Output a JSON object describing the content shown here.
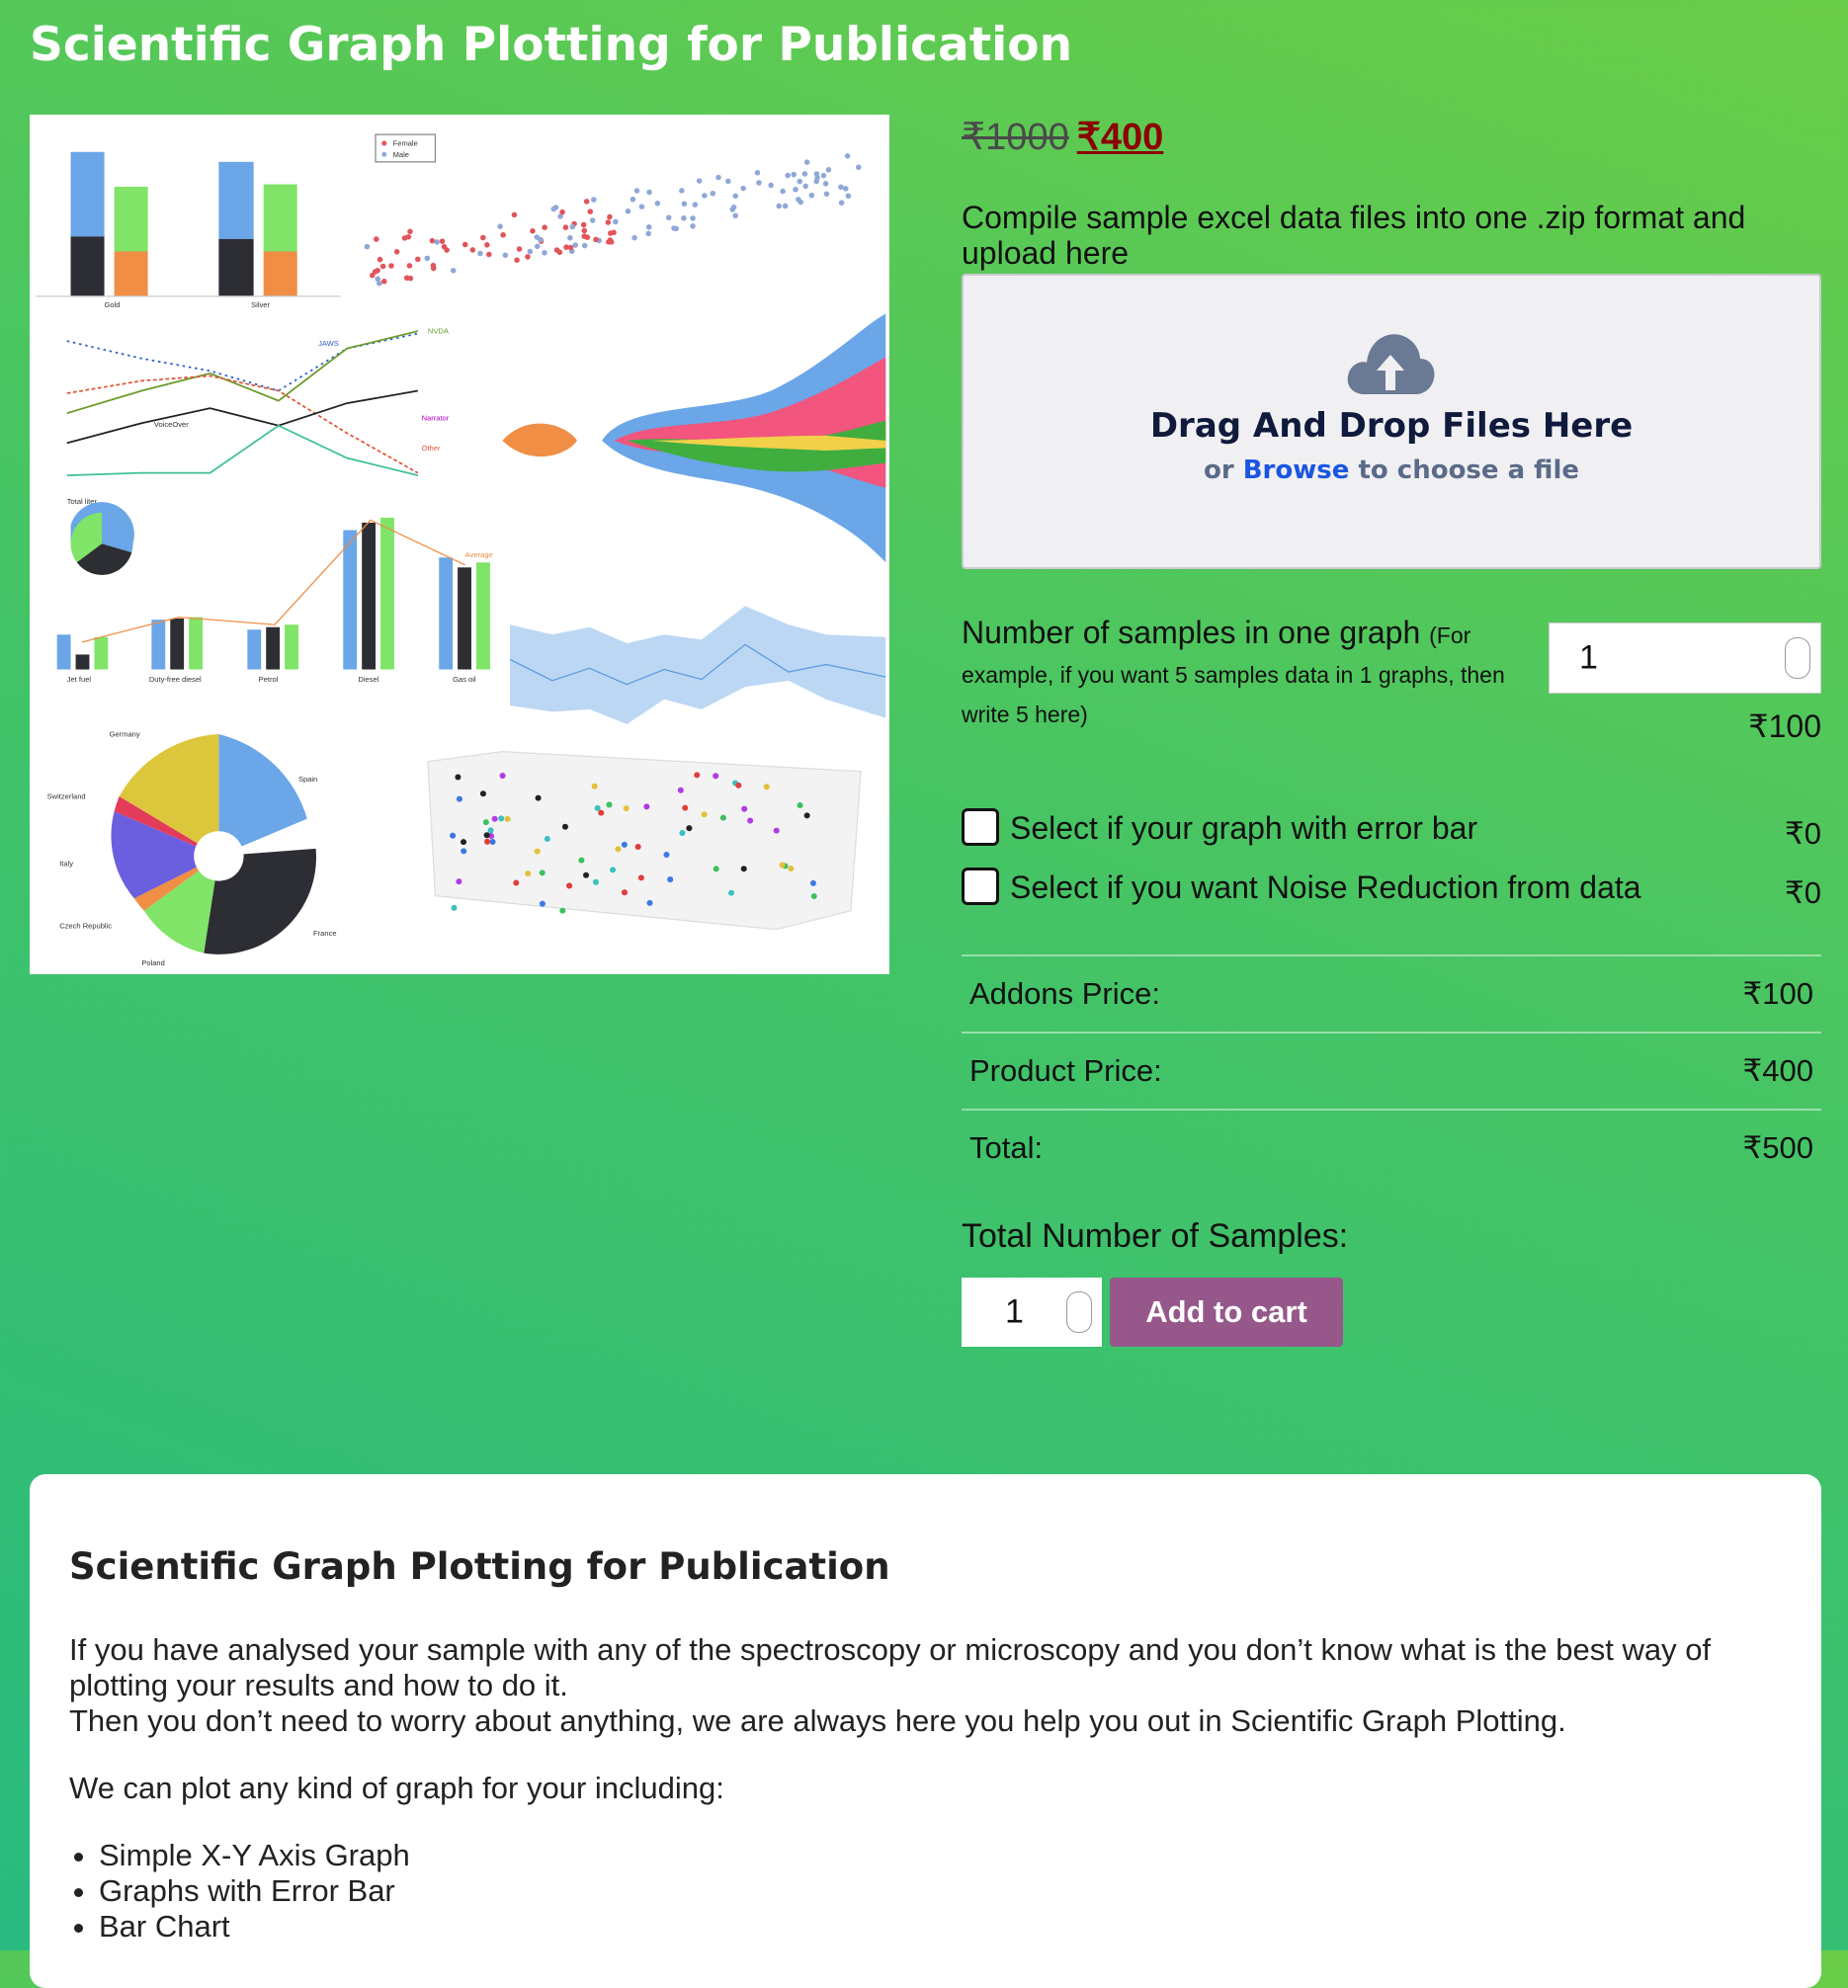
{
  "header": {
    "title": "Scientific Graph Plotting for Publication"
  },
  "product_image": {
    "labels": [
      "Female",
      "Male",
      "Gold",
      "Silver",
      "NVDA",
      "JAWS",
      "VoiceOver",
      "Narrator",
      "Other",
      "Total liter",
      "Average",
      "Jet fuel",
      "Duty-free diesel",
      "Petrol",
      "Diesel",
      "Gas oil",
      "Germany",
      "Spain",
      "Switzerland",
      "Italy",
      "Czech Republic",
      "Poland",
      "France"
    ]
  },
  "price": {
    "original": "₹1000",
    "sale": "₹400"
  },
  "upload": {
    "instruction": "Compile sample excel data files into one .zip format and upload here",
    "heading": "Drag And Drop Files Here",
    "prefix": "or",
    "link": "Browse",
    "suffix": "to choose a file"
  },
  "samples": {
    "label": "Number of samples in one graph",
    "hint": "(For example, if you want 5 samples data in 1 graphs, then write 5 here)",
    "value": "1",
    "price": "₹100"
  },
  "addons": [
    {
      "label": "Select if your graph with error bar",
      "price": "₹0"
    },
    {
      "label": "Select if you want Noise Reduction from data",
      "price": "₹0"
    }
  ],
  "summary": [
    {
      "label": "Addons Price:",
      "value": "₹100"
    },
    {
      "label": "Product Price:",
      "value": "₹400"
    },
    {
      "label": "Total:",
      "value": "₹500"
    }
  ],
  "quantity": {
    "label": "Total Number of Samples:",
    "value": "1"
  },
  "button": "Add to cart",
  "description": {
    "title": "Scientific Graph Plotting for Publication",
    "paragraphs": [
      "If you have analysed your sample with any of the spectroscopy or microscopy and you don’t know what is the best way of plotting your results and how to do it.",
      "Then you don’t need to worry about anything, we are always here you help you out in Scientific Graph Plotting.",
      "We can plot any kind of graph for your including:"
    ],
    "list": [
      "Simple X-Y Axis Graph",
      "Graphs with Error Bar",
      "Bar Chart"
    ]
  }
}
